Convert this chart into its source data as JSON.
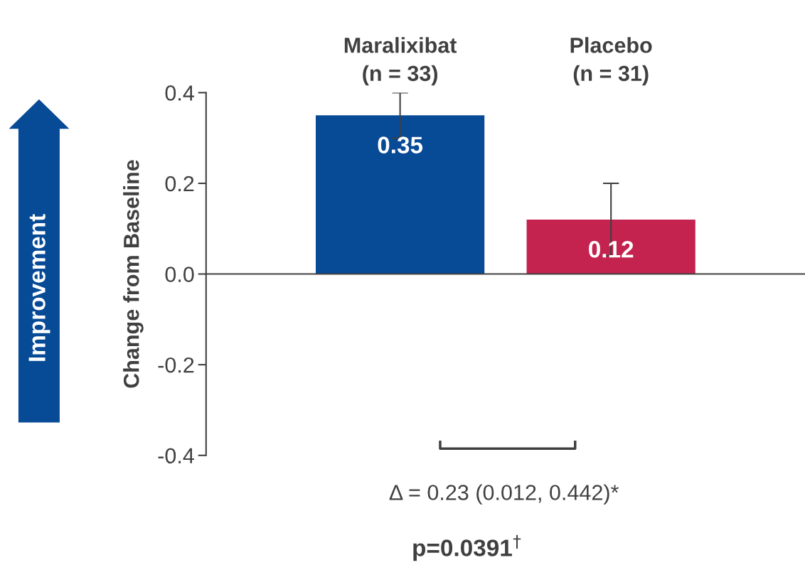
{
  "chart_data": {
    "type": "bar",
    "ylabel": "Change from Baseline",
    "categories": [
      "Maralixibat\n(n = 33)",
      "Placebo\n(n = 31)"
    ],
    "values": [
      0.35,
      0.12
    ],
    "colors": [
      "#074a96",
      "#c4234f"
    ],
    "errors": [
      [
        0.3,
        0.4
      ],
      [
        0.04,
        0.2
      ]
    ],
    "ylim": [
      -0.4,
      0.4
    ],
    "yticks": [
      {
        "value": -0.4,
        "label": "-0.4"
      },
      {
        "value": -0.2,
        "label": "-0.2"
      },
      {
        "value": 0,
        "label": "0.0"
      },
      0.2,
      0.4
    ],
    "data_labels": true,
    "annotations": [
      "Improvement",
      "Δ = 0.23 (0.012, 0.442)*",
      "p=0.0391$^{†}$"
    ]
  }
}
